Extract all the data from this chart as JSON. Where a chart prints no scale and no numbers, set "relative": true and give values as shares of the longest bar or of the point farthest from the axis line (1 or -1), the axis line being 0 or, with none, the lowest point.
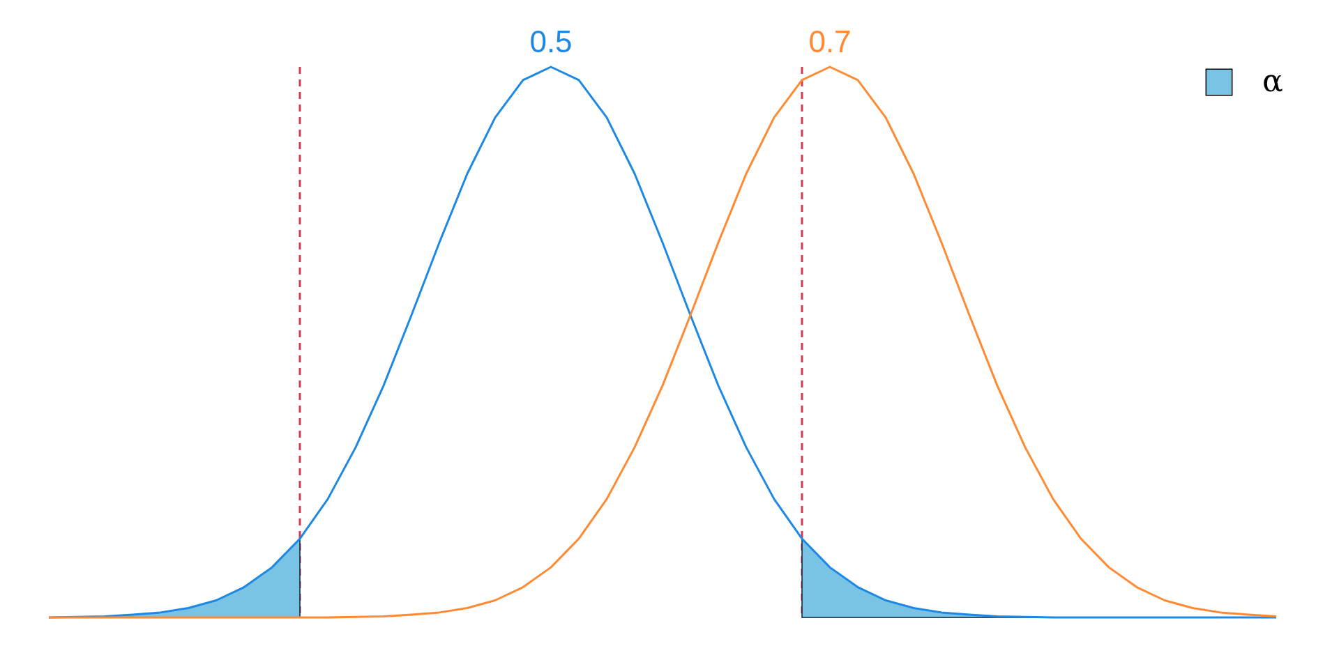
{
  "chart_data": {
    "type": "line",
    "relative": true,
    "categories": [
      null,
      null,
      null,
      null,
      null,
      null,
      null,
      null,
      null,
      null,
      null,
      null,
      null,
      null,
      null,
      null,
      null,
      null,
      null,
      null,
      null,
      null,
      null,
      null,
      null,
      null,
      null,
      null,
      null,
      null,
      null,
      null,
      null,
      null,
      null,
      null,
      null,
      null,
      null,
      null,
      null,
      null,
      null,
      null,
      null
    ],
    "series": [
      {
        "name": "α",
        "type": "area",
        "color": "#79c3e4",
        "values": [
          0,
          0.001,
          0.002,
          0.005,
          0.009,
          0.017,
          0.031,
          0.055,
          0.091,
          0.143,
          null,
          null,
          null,
          null,
          null,
          null,
          null,
          null,
          null,
          null,
          null,
          null,
          null,
          null,
          null,
          null,
          null,
          0.143,
          0.091,
          0.055,
          0.031,
          0.017,
          0.009,
          0.005,
          0.002,
          0.001,
          0,
          0,
          0,
          0,
          0,
          0,
          0,
          0,
          0
        ]
      },
      {
        "name": "0.5",
        "color": "#1e88e5",
        "values": [
          0,
          0.001,
          0.002,
          0.005,
          0.009,
          0.017,
          0.031,
          0.055,
          0.091,
          0.143,
          0.215,
          0.309,
          0.421,
          0.549,
          0.681,
          0.806,
          0.908,
          0.976,
          1,
          0.976,
          0.908,
          0.806,
          0.681,
          0.549,
          0.421,
          0.309,
          0.215,
          0.143,
          0.091,
          0.055,
          0.031,
          0.017,
          0.009,
          0.005,
          0.002,
          0.001,
          0,
          0,
          0,
          0,
          0,
          0,
          0,
          0,
          0
        ]
      },
      {
        "name": "0.7",
        "color": "#ff8a33",
        "values": [
          0,
          0,
          0,
          0,
          0,
          0,
          0,
          0,
          0,
          0,
          0,
          0.001,
          0.002,
          0.005,
          0.009,
          0.017,
          0.031,
          0.055,
          0.091,
          0.143,
          0.215,
          0.309,
          0.421,
          0.549,
          0.681,
          0.806,
          0.908,
          0.976,
          1,
          0.976,
          0.908,
          0.806,
          0.681,
          0.549,
          0.421,
          0.309,
          0.215,
          0.143,
          0.091,
          0.055,
          0.031,
          0.017,
          0.009,
          0.005,
          0.002
        ]
      }
    ],
    "legend": "top right"
  }
}
